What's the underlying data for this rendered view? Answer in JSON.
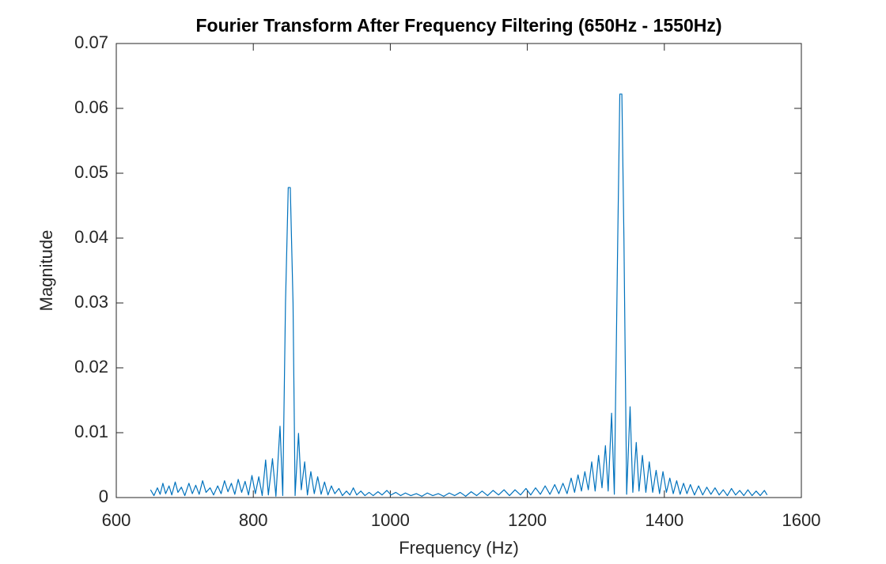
{
  "chart_data": {
    "type": "line",
    "title": "Fourier Transform After Frequency Filtering (650Hz - 1550Hz)",
    "x_label": "Frequency (Hz)",
    "y_label": "Magnitude",
    "xlim": [
      600,
      1600
    ],
    "xticks": [
      600,
      800,
      1000,
      1200,
      1400,
      1600
    ],
    "ylim": [
      0,
      0.07
    ],
    "yticks": [
      0,
      0.01,
      0.02,
      0.03,
      0.04,
      0.05,
      0.06,
      0.07
    ],
    "box": true,
    "x": [
      650,
      655,
      660,
      664,
      668,
      672,
      677,
      681,
      686,
      690,
      695,
      700,
      706,
      711,
      716,
      721,
      726,
      731,
      737,
      742,
      748,
      753,
      758,
      763,
      768,
      773,
      778,
      783,
      788,
      793,
      798,
      803,
      808,
      813,
      818,
      822,
      828,
      833,
      839,
      843,
      847,
      851,
      854,
      858,
      861,
      866,
      870,
      875,
      879,
      884,
      889,
      894,
      899,
      904,
      909,
      914,
      919,
      925,
      930,
      936,
      941,
      946,
      951,
      957,
      963,
      969,
      975,
      982,
      988,
      995,
      1001,
      1008,
      1015,
      1022,
      1030,
      1038,
      1046,
      1054,
      1062,
      1070,
      1078,
      1086,
      1094,
      1102,
      1110,
      1118,
      1126,
      1134,
      1142,
      1150,
      1158,
      1166,
      1174,
      1182,
      1190,
      1198,
      1205,
      1212,
      1219,
      1226,
      1233,
      1240,
      1246,
      1252,
      1258,
      1264,
      1269,
      1274,
      1279,
      1284,
      1289,
      1294,
      1299,
      1304,
      1309,
      1314,
      1318,
      1323,
      1327,
      1332,
      1335,
      1338,
      1341,
      1345,
      1350,
      1354,
      1359,
      1363,
      1368,
      1373,
      1378,
      1383,
      1388,
      1393,
      1398,
      1403,
      1408,
      1413,
      1418,
      1423,
      1428,
      1433,
      1438,
      1444,
      1450,
      1456,
      1462,
      1468,
      1474,
      1480,
      1486,
      1492,
      1498,
      1504,
      1510,
      1516,
      1522,
      1528,
      1534,
      1540,
      1546,
      1550
    ],
    "series": [
      {
        "color": "#0072bd",
        "values": [
          0.0012,
          0.0003,
          0.0015,
          0.0005,
          0.0022,
          0.0006,
          0.0018,
          0.0004,
          0.0024,
          0.0008,
          0.0016,
          0.0003,
          0.0022,
          0.0006,
          0.0019,
          0.0005,
          0.0026,
          0.0008,
          0.0015,
          0.0004,
          0.0018,
          0.0006,
          0.0026,
          0.0009,
          0.0022,
          0.0005,
          0.0028,
          0.0008,
          0.0025,
          0.0004,
          0.0034,
          0.0006,
          0.0032,
          0.0003,
          0.0058,
          0.0004,
          0.006,
          0.0002,
          0.011,
          0.0003,
          0.03,
          0.0478,
          0.0478,
          0.03,
          0.0003,
          0.0099,
          0.0012,
          0.0055,
          0.0004,
          0.004,
          0.0006,
          0.0032,
          0.0005,
          0.0024,
          0.0004,
          0.0018,
          0.0006,
          0.0014,
          0.0003,
          0.001,
          0.0004,
          0.0015,
          0.0004,
          0.001,
          0.0003,
          0.0008,
          0.0003,
          0.0009,
          0.0004,
          0.0011,
          0.0004,
          0.0008,
          0.0003,
          0.0007,
          0.0003,
          0.0006,
          0.0002,
          0.0007,
          0.0003,
          0.0006,
          0.0002,
          0.0007,
          0.0003,
          0.0008,
          0.0002,
          0.0009,
          0.0003,
          0.001,
          0.0003,
          0.0011,
          0.0004,
          0.0012,
          0.0003,
          0.0012,
          0.0004,
          0.0014,
          0.0004,
          0.0015,
          0.0005,
          0.0018,
          0.0005,
          0.002,
          0.0006,
          0.0022,
          0.0006,
          0.003,
          0.0008,
          0.0035,
          0.001,
          0.004,
          0.0012,
          0.0055,
          0.001,
          0.0065,
          0.0015,
          0.008,
          0.001,
          0.013,
          0.0005,
          0.04,
          0.0622,
          0.0622,
          0.04,
          0.0005,
          0.014,
          0.0008,
          0.0085,
          0.001,
          0.0065,
          0.0008,
          0.0055,
          0.0008,
          0.0042,
          0.0006,
          0.004,
          0.0008,
          0.003,
          0.0006,
          0.0026,
          0.0005,
          0.0022,
          0.0006,
          0.002,
          0.0004,
          0.0018,
          0.0004,
          0.0016,
          0.0005,
          0.0015,
          0.0004,
          0.0012,
          0.0003,
          0.0014,
          0.0004,
          0.0011,
          0.0003,
          0.0012,
          0.0003,
          0.001,
          0.0003,
          0.0011,
          0.0004
        ]
      }
    ]
  }
}
